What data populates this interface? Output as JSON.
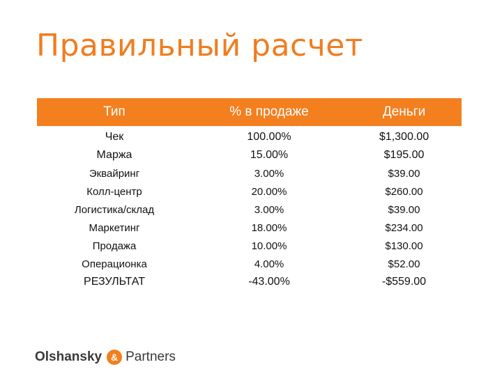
{
  "title": "Правильный расчет",
  "table": {
    "headers": [
      "Тип",
      "% в продаже",
      "Деньги"
    ],
    "rows": [
      {
        "type": "Чек",
        "percent": "100.00%",
        "money": "$1,300.00"
      },
      {
        "type": "Маржа",
        "percent": "15.00%",
        "money": "$195.00"
      },
      {
        "type": "Эквайринг",
        "percent": "3.00%",
        "money": "$39.00"
      },
      {
        "type": "Колл-центр",
        "percent": "20.00%",
        "money": "$260.00"
      },
      {
        "type": "Логистика/склад",
        "percent": "3.00%",
        "money": "$39.00"
      },
      {
        "type": "Маркетинг",
        "percent": "18.00%",
        "money": "$234.00"
      },
      {
        "type": "Продажа",
        "percent": "10.00%",
        "money": "$130.00"
      },
      {
        "type": "Операционка",
        "percent": "4.00%",
        "money": "$52.00"
      },
      {
        "type": "РЕЗУЛЬТАТ",
        "percent": "-43.00%",
        "money": "-$559.00"
      }
    ]
  },
  "logo": {
    "word1": "Olshansky",
    "amp": "&",
    "word2": "Partners"
  },
  "colors": {
    "accent": "#f37f1f",
    "header_text": "#ffffff",
    "text": "#111111"
  }
}
